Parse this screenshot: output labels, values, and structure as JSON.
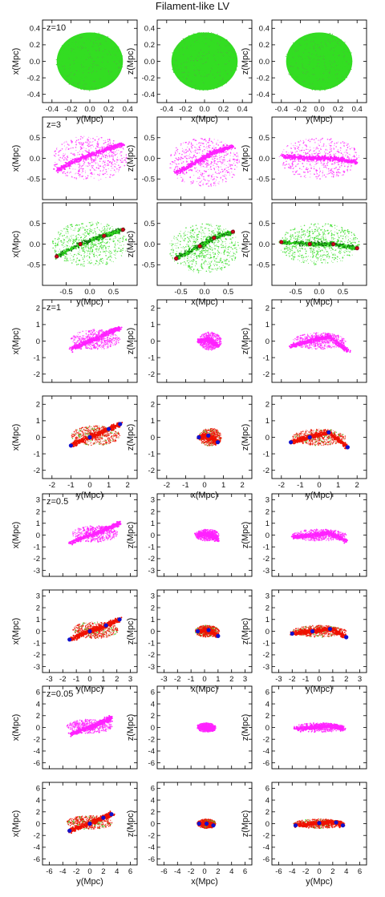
{
  "chart_data": {
    "type": "scatter",
    "title": "Filament-like LV",
    "colors": {
      "dm": "#33dd22",
      "gas": "#ff22ff",
      "stars": "#ee1100",
      "dark_green": "#117711",
      "halo": "#990022",
      "blue": "#1111cc"
    },
    "column_axes": [
      {
        "xlabel": "y(Mpc)",
        "ylabel": "x(Mpc)"
      },
      {
        "xlabel": "x(Mpc)",
        "ylabel": "z(Mpc)"
      },
      {
        "xlabel": "y(Mpc)",
        "ylabel": "z(Mpc)"
      }
    ],
    "groups": [
      {
        "redshift_label": "z=10",
        "lim": [
          -0.5,
          0.5
        ],
        "xticks": [
          "-0.4",
          "-0.2",
          "0.0",
          "0.2",
          "0.4"
        ],
        "yticks": [
          "-0.4",
          "-0.2",
          "0.0",
          "0.2",
          "0.4"
        ],
        "xtick_values": [
          -0.4,
          -0.2,
          0.0,
          0.2,
          0.4
        ],
        "ytick_values": [
          -0.4,
          -0.2,
          0.0,
          0.2,
          0.4
        ],
        "rows": [
          "dm_sphere"
        ]
      },
      {
        "redshift_label": "z=3",
        "lim": [
          -1.0,
          1.0
        ],
        "xticks": [
          "-0.5",
          "0.0",
          "0.5"
        ],
        "yticks": [
          "-0.5",
          "0.0",
          "0.5"
        ],
        "xtick_values": [
          -0.5,
          0.0,
          0.5
        ],
        "ytick_values": [
          -0.5,
          0.0,
          0.5
        ],
        "rows": [
          "gas",
          "dm_halos"
        ]
      },
      {
        "redshift_label": "z=1",
        "lim": [
          -2.5,
          2.5
        ],
        "xticks": [
          "-2",
          "-1",
          "0",
          "1",
          "2"
        ],
        "yticks": [
          "-2",
          "-1",
          "0",
          "1",
          "2"
        ],
        "xtick_values": [
          -2,
          -1,
          0,
          1,
          2
        ],
        "ytick_values": [
          -2,
          -1,
          0,
          1,
          2
        ],
        "rows": [
          "gas",
          "stars"
        ]
      },
      {
        "redshift_label": "z=0.5",
        "lim": [
          -3.5,
          3.5
        ],
        "xticks": [
          "-3",
          "-2",
          "-1",
          "0",
          "1",
          "2",
          "3"
        ],
        "yticks": [
          "-3",
          "-2",
          "-1",
          "0",
          "1",
          "2",
          "3"
        ],
        "xtick_values": [
          -3,
          -2,
          -1,
          0,
          1,
          2,
          3
        ],
        "ytick_values": [
          -3,
          -2,
          -1,
          0,
          1,
          2,
          3
        ],
        "rows": [
          "gas",
          "stars"
        ]
      },
      {
        "redshift_label": "z=0.05",
        "lim": [
          -7,
          7
        ],
        "xticks": [
          "-6",
          "-4",
          "-2",
          "0",
          "2",
          "4",
          "6"
        ],
        "yticks": [
          "-6",
          "-4",
          "-2",
          "0",
          "2",
          "4",
          "6"
        ],
        "xtick_values": [
          -6,
          -4,
          -2,
          0,
          2,
          4,
          6
        ],
        "ytick_values": [
          -6,
          -4,
          -2,
          0,
          2,
          4,
          6
        ],
        "rows": [
          "gas",
          "stars"
        ]
      }
    ],
    "structures": {
      "z=3": [
        {
          "cx": 0.0,
          "cy": 0.0,
          "rx": 0.8,
          "ry": 0.55,
          "filament": [
            [
              -0.7,
              -0.3
            ],
            [
              -0.2,
              0.0
            ],
            [
              0.3,
              0.2
            ],
            [
              0.7,
              0.35
            ]
          ]
        },
        {
          "cx": 0.0,
          "cy": -0.1,
          "rx": 0.75,
          "ry": 0.6,
          "filament": [
            [
              -0.6,
              -0.35
            ],
            [
              -0.1,
              -0.05
            ],
            [
              0.2,
              0.15
            ],
            [
              0.6,
              0.3
            ]
          ]
        },
        {
          "cx": 0.0,
          "cy": 0.0,
          "rx": 0.85,
          "ry": 0.5,
          "filament": [
            [
              -0.8,
              0.05
            ],
            [
              -0.2,
              0.0
            ],
            [
              0.3,
              0.0
            ],
            [
              0.8,
              -0.1
            ]
          ]
        }
      ],
      "z=1": [
        {
          "cx": 0.3,
          "cy": 0.1,
          "rx": 1.3,
          "ry": 0.6,
          "filament": [
            [
              -1.0,
              -0.5
            ],
            [
              0.0,
              0.0
            ],
            [
              1.0,
              0.5
            ],
            [
              1.6,
              0.8
            ]
          ]
        },
        {
          "cx": 0.3,
          "cy": 0.0,
          "rx": 0.6,
          "ry": 0.55,
          "filament": [
            [
              -0.3,
              0.0
            ],
            [
              0.2,
              0.1
            ],
            [
              0.7,
              -0.3
            ]
          ]
        },
        {
          "cx": 0.0,
          "cy": 0.0,
          "rx": 1.4,
          "ry": 0.5,
          "filament": [
            [
              -1.5,
              -0.3
            ],
            [
              -0.5,
              0.0
            ],
            [
              0.5,
              0.3
            ],
            [
              1.5,
              -0.6
            ]
          ]
        }
      ],
      "z=0.5": [
        {
          "cx": 0.4,
          "cy": 0.1,
          "rx": 1.7,
          "ry": 0.7,
          "filament": [
            [
              -1.5,
              -0.7
            ],
            [
              0.0,
              0.0
            ],
            [
              1.2,
              0.5
            ],
            [
              2.2,
              1.0
            ]
          ]
        },
        {
          "cx": 0.2,
          "cy": 0.0,
          "rx": 0.9,
          "ry": 0.5,
          "filament": [
            [
              -0.5,
              0.0
            ],
            [
              0.3,
              0.1
            ],
            [
              1.0,
              -0.4
            ]
          ]
        },
        {
          "cx": 0.0,
          "cy": 0.0,
          "rx": 2.0,
          "ry": 0.5,
          "filament": [
            [
              -2.0,
              -0.2
            ],
            [
              -0.5,
              0.0
            ],
            [
              0.8,
              0.2
            ],
            [
              2.0,
              -0.5
            ]
          ]
        }
      ],
      "z=0.05": [
        {
          "cx": 0.0,
          "cy": 0.2,
          "rx": 3.4,
          "ry": 1.2,
          "filament": [
            [
              -3.0,
              -1.2
            ],
            [
              0.0,
              0.0
            ],
            [
              2.0,
              1.0
            ],
            [
              3.2,
              1.6
            ]
          ]
        },
        {
          "cx": 0.3,
          "cy": 0.0,
          "rx": 1.4,
          "ry": 0.8,
          "filament": [
            [
              -0.8,
              0.0
            ],
            [
              0.3,
              0.0
            ],
            [
              1.3,
              -0.3
            ]
          ]
        },
        {
          "cx": 0.0,
          "cy": 0.0,
          "rx": 3.8,
          "ry": 0.8,
          "filament": [
            [
              -3.5,
              -0.3
            ],
            [
              0.0,
              0.1
            ],
            [
              2.5,
              0.2
            ],
            [
              3.5,
              -0.3
            ]
          ]
        }
      ]
    }
  }
}
